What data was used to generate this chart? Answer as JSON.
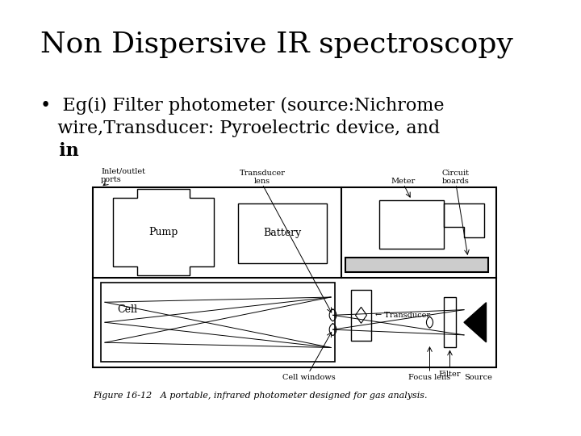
{
  "title": "Non Dispersive IR spectroscopy",
  "bullet1": "•  Eg(i) Filter photometer (source:Nichrome",
  "bullet2": "   wire,Transducer: Pyroelectric device, and",
  "bullet3": "   in",
  "figure_caption": "Figure 16-12   A portable, infrared photometer designed for gas analysis.",
  "bg_color": "#ffffff",
  "text_color": "#000000",
  "title_fontsize": 26,
  "body_fontsize": 16,
  "caption_fontsize": 8,
  "label_fontsize": 7
}
